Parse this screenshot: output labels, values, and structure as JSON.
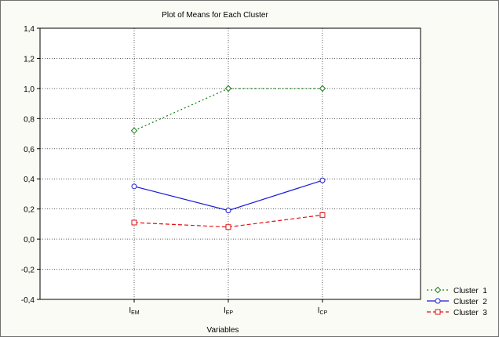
{
  "chart_data": {
    "type": "line",
    "title": "Plot of Means for Each Cluster",
    "xlabel": "Variables",
    "ylabel": "",
    "categories": [
      {
        "base": "I",
        "sub": "EM"
      },
      {
        "base": "I",
        "sub": "EP"
      },
      {
        "base": "I",
        "sub": "CP"
      }
    ],
    "ylim": [
      -0.4,
      1.4
    ],
    "yticks": [
      "-0,4",
      "-0,2",
      "0,0",
      "0,2",
      "0,4",
      "0,6",
      "0,8",
      "1,0",
      "1,2",
      "1,4"
    ],
    "ytick_values": [
      -0.4,
      -0.2,
      0.0,
      0.2,
      0.4,
      0.6,
      0.8,
      1.0,
      1.2,
      1.4
    ],
    "grid": true,
    "legend_position": "bottom-right",
    "series": [
      {
        "name": "Cluster  1",
        "values": [
          0.72,
          1.0,
          1.0
        ],
        "color": "#1a7a1a",
        "dash": "2,3",
        "marker": "diamond"
      },
      {
        "name": "Cluster  2",
        "values": [
          0.35,
          0.19,
          0.39
        ],
        "color": "#1a1ad6",
        "dash": "",
        "marker": "circle"
      },
      {
        "name": "Cluster  3",
        "values": [
          0.11,
          0.08,
          0.16
        ],
        "color": "#e01010",
        "dash": "5,3",
        "marker": "square"
      }
    ]
  }
}
